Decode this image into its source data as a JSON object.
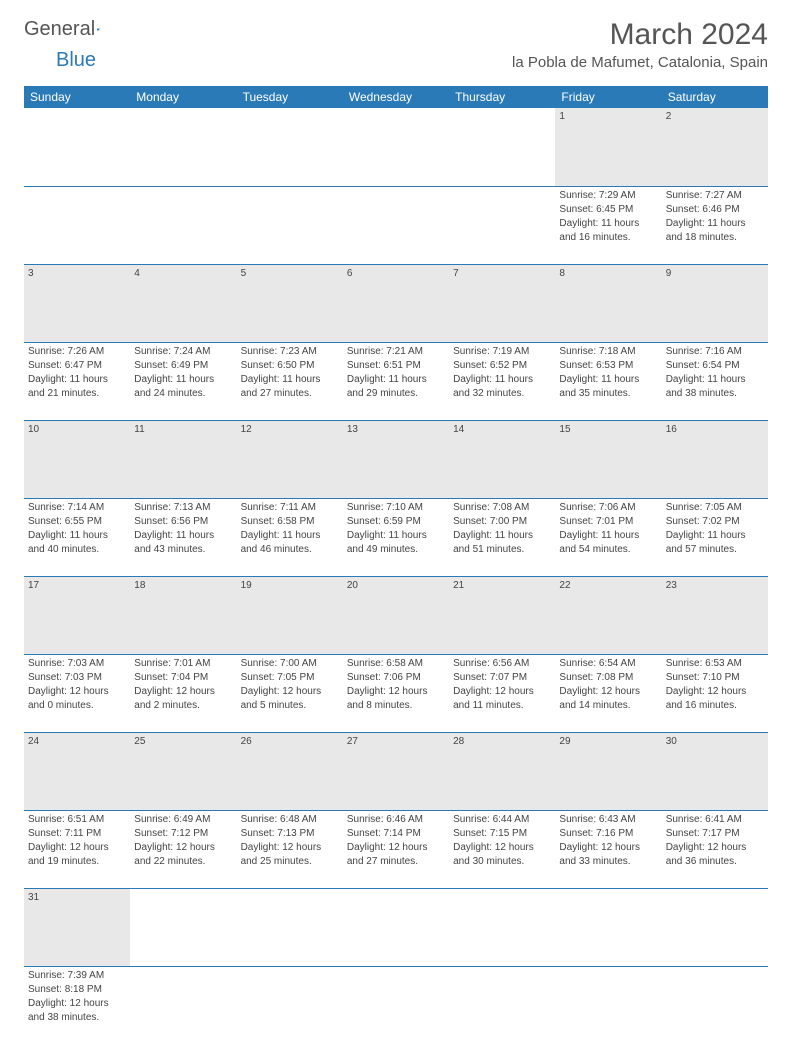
{
  "logo": {
    "part1": "General",
    "part2": "Blue"
  },
  "title": "March 2024",
  "location": "la Pobla de Mafumet, Catalonia, Spain",
  "day_headers": [
    "Sunday",
    "Monday",
    "Tuesday",
    "Wednesday",
    "Thursday",
    "Friday",
    "Saturday"
  ],
  "colors": {
    "header_bg": "#2a7ab8",
    "header_fg": "#ffffff",
    "daynum_bg": "#e8e8e8",
    "text": "#444444",
    "rule": "#2a7ab8"
  },
  "weeks": [
    [
      null,
      null,
      null,
      null,
      null,
      {
        "day": "1",
        "sunrise": "Sunrise: 7:29 AM",
        "sunset": "Sunset: 6:45 PM",
        "daylight1": "Daylight: 11 hours",
        "daylight2": "and 16 minutes."
      },
      {
        "day": "2",
        "sunrise": "Sunrise: 7:27 AM",
        "sunset": "Sunset: 6:46 PM",
        "daylight1": "Daylight: 11 hours",
        "daylight2": "and 18 minutes."
      }
    ],
    [
      {
        "day": "3",
        "sunrise": "Sunrise: 7:26 AM",
        "sunset": "Sunset: 6:47 PM",
        "daylight1": "Daylight: 11 hours",
        "daylight2": "and 21 minutes."
      },
      {
        "day": "4",
        "sunrise": "Sunrise: 7:24 AM",
        "sunset": "Sunset: 6:49 PM",
        "daylight1": "Daylight: 11 hours",
        "daylight2": "and 24 minutes."
      },
      {
        "day": "5",
        "sunrise": "Sunrise: 7:23 AM",
        "sunset": "Sunset: 6:50 PM",
        "daylight1": "Daylight: 11 hours",
        "daylight2": "and 27 minutes."
      },
      {
        "day": "6",
        "sunrise": "Sunrise: 7:21 AM",
        "sunset": "Sunset: 6:51 PM",
        "daylight1": "Daylight: 11 hours",
        "daylight2": "and 29 minutes."
      },
      {
        "day": "7",
        "sunrise": "Sunrise: 7:19 AM",
        "sunset": "Sunset: 6:52 PM",
        "daylight1": "Daylight: 11 hours",
        "daylight2": "and 32 minutes."
      },
      {
        "day": "8",
        "sunrise": "Sunrise: 7:18 AM",
        "sunset": "Sunset: 6:53 PM",
        "daylight1": "Daylight: 11 hours",
        "daylight2": "and 35 minutes."
      },
      {
        "day": "9",
        "sunrise": "Sunrise: 7:16 AM",
        "sunset": "Sunset: 6:54 PM",
        "daylight1": "Daylight: 11 hours",
        "daylight2": "and 38 minutes."
      }
    ],
    [
      {
        "day": "10",
        "sunrise": "Sunrise: 7:14 AM",
        "sunset": "Sunset: 6:55 PM",
        "daylight1": "Daylight: 11 hours",
        "daylight2": "and 40 minutes."
      },
      {
        "day": "11",
        "sunrise": "Sunrise: 7:13 AM",
        "sunset": "Sunset: 6:56 PM",
        "daylight1": "Daylight: 11 hours",
        "daylight2": "and 43 minutes."
      },
      {
        "day": "12",
        "sunrise": "Sunrise: 7:11 AM",
        "sunset": "Sunset: 6:58 PM",
        "daylight1": "Daylight: 11 hours",
        "daylight2": "and 46 minutes."
      },
      {
        "day": "13",
        "sunrise": "Sunrise: 7:10 AM",
        "sunset": "Sunset: 6:59 PM",
        "daylight1": "Daylight: 11 hours",
        "daylight2": "and 49 minutes."
      },
      {
        "day": "14",
        "sunrise": "Sunrise: 7:08 AM",
        "sunset": "Sunset: 7:00 PM",
        "daylight1": "Daylight: 11 hours",
        "daylight2": "and 51 minutes."
      },
      {
        "day": "15",
        "sunrise": "Sunrise: 7:06 AM",
        "sunset": "Sunset: 7:01 PM",
        "daylight1": "Daylight: 11 hours",
        "daylight2": "and 54 minutes."
      },
      {
        "day": "16",
        "sunrise": "Sunrise: 7:05 AM",
        "sunset": "Sunset: 7:02 PM",
        "daylight1": "Daylight: 11 hours",
        "daylight2": "and 57 minutes."
      }
    ],
    [
      {
        "day": "17",
        "sunrise": "Sunrise: 7:03 AM",
        "sunset": "Sunset: 7:03 PM",
        "daylight1": "Daylight: 12 hours",
        "daylight2": "and 0 minutes."
      },
      {
        "day": "18",
        "sunrise": "Sunrise: 7:01 AM",
        "sunset": "Sunset: 7:04 PM",
        "daylight1": "Daylight: 12 hours",
        "daylight2": "and 2 minutes."
      },
      {
        "day": "19",
        "sunrise": "Sunrise: 7:00 AM",
        "sunset": "Sunset: 7:05 PM",
        "daylight1": "Daylight: 12 hours",
        "daylight2": "and 5 minutes."
      },
      {
        "day": "20",
        "sunrise": "Sunrise: 6:58 AM",
        "sunset": "Sunset: 7:06 PM",
        "daylight1": "Daylight: 12 hours",
        "daylight2": "and 8 minutes."
      },
      {
        "day": "21",
        "sunrise": "Sunrise: 6:56 AM",
        "sunset": "Sunset: 7:07 PM",
        "daylight1": "Daylight: 12 hours",
        "daylight2": "and 11 minutes."
      },
      {
        "day": "22",
        "sunrise": "Sunrise: 6:54 AM",
        "sunset": "Sunset: 7:08 PM",
        "daylight1": "Daylight: 12 hours",
        "daylight2": "and 14 minutes."
      },
      {
        "day": "23",
        "sunrise": "Sunrise: 6:53 AM",
        "sunset": "Sunset: 7:10 PM",
        "daylight1": "Daylight: 12 hours",
        "daylight2": "and 16 minutes."
      }
    ],
    [
      {
        "day": "24",
        "sunrise": "Sunrise: 6:51 AM",
        "sunset": "Sunset: 7:11 PM",
        "daylight1": "Daylight: 12 hours",
        "daylight2": "and 19 minutes."
      },
      {
        "day": "25",
        "sunrise": "Sunrise: 6:49 AM",
        "sunset": "Sunset: 7:12 PM",
        "daylight1": "Daylight: 12 hours",
        "daylight2": "and 22 minutes."
      },
      {
        "day": "26",
        "sunrise": "Sunrise: 6:48 AM",
        "sunset": "Sunset: 7:13 PM",
        "daylight1": "Daylight: 12 hours",
        "daylight2": "and 25 minutes."
      },
      {
        "day": "27",
        "sunrise": "Sunrise: 6:46 AM",
        "sunset": "Sunset: 7:14 PM",
        "daylight1": "Daylight: 12 hours",
        "daylight2": "and 27 minutes."
      },
      {
        "day": "28",
        "sunrise": "Sunrise: 6:44 AM",
        "sunset": "Sunset: 7:15 PM",
        "daylight1": "Daylight: 12 hours",
        "daylight2": "and 30 minutes."
      },
      {
        "day": "29",
        "sunrise": "Sunrise: 6:43 AM",
        "sunset": "Sunset: 7:16 PM",
        "daylight1": "Daylight: 12 hours",
        "daylight2": "and 33 minutes."
      },
      {
        "day": "30",
        "sunrise": "Sunrise: 6:41 AM",
        "sunset": "Sunset: 7:17 PM",
        "daylight1": "Daylight: 12 hours",
        "daylight2": "and 36 minutes."
      }
    ],
    [
      {
        "day": "31",
        "sunrise": "Sunrise: 7:39 AM",
        "sunset": "Sunset: 8:18 PM",
        "daylight1": "Daylight: 12 hours",
        "daylight2": "and 38 minutes."
      },
      null,
      null,
      null,
      null,
      null,
      null
    ]
  ]
}
